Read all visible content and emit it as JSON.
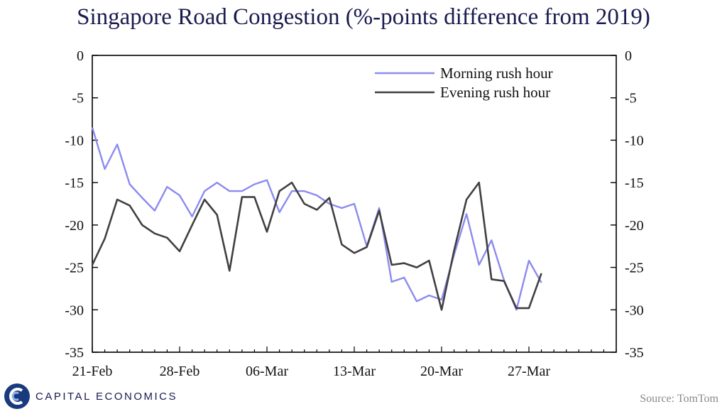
{
  "title": "Singapore Road Congestion (%-points difference from 2019)",
  "source": "Source: TomTom",
  "logo": {
    "text": "CAPITAL ECONOMICS",
    "icon": "ce-logo-icon"
  },
  "colors": {
    "morning": "#8b8bf0",
    "evening": "#404040",
    "title": "#1a1a4e"
  },
  "chart_data": {
    "type": "line",
    "title": "Singapore Road Congestion (%-points difference from 2019)",
    "ylim": [
      -35,
      0
    ],
    "yticks": [
      0,
      -5,
      -10,
      -15,
      -20,
      -25,
      -30,
      -35
    ],
    "ytick_labels": [
      "0",
      "-5",
      "-10",
      "-15",
      "-20",
      "-25",
      "-30",
      "-35"
    ],
    "xlim": [
      0,
      42
    ],
    "x_ticks": [
      0,
      7,
      14,
      21,
      28,
      35
    ],
    "x_tick_labels": [
      "21-Feb",
      "28-Feb",
      "06-Mar",
      "13-Mar",
      "20-Mar",
      "27-Mar"
    ],
    "legend_position": "top-right",
    "series": [
      {
        "name": "Morning rush hour",
        "x": [
          0,
          1,
          2,
          3,
          4,
          5,
          6,
          7,
          8,
          9,
          10,
          11,
          12,
          13,
          14,
          15,
          16,
          17,
          18,
          19,
          20,
          21,
          22,
          23,
          24,
          25,
          26,
          27,
          28,
          29,
          30,
          31,
          32,
          33,
          34,
          35,
          36
        ],
        "values": [
          -8.5,
          -13.4,
          -10.5,
          -15.2,
          -16.8,
          -18.3,
          -15.5,
          -16.5,
          -19,
          -16,
          -15,
          -16,
          -16,
          -15.2,
          -14.7,
          -18.5,
          -16,
          -16,
          -16.5,
          -17.5,
          -18,
          -17.5,
          -22.5,
          -18,
          -26.7,
          -26.2,
          -29,
          -28.3,
          -28.8,
          -23.5,
          -18.7,
          -24.7,
          -21.8,
          -26.5,
          -30,
          -24.2,
          -26.8
        ]
      },
      {
        "name": "Evening rush hour",
        "x": [
          0,
          1,
          2,
          3,
          4,
          5,
          6,
          7,
          8,
          9,
          10,
          11,
          12,
          13,
          14,
          15,
          16,
          17,
          18,
          19,
          20,
          21,
          22,
          23,
          24,
          25,
          26,
          27,
          28,
          29,
          30,
          31,
          32,
          33,
          34,
          35,
          36
        ],
        "values": [
          -24.7,
          -21.6,
          -17,
          -17.7,
          -20,
          -21,
          -21.5,
          -23.1,
          -20,
          -17,
          -18.8,
          -25.4,
          -16.7,
          -16.7,
          -20.8,
          -16,
          -15,
          -17.5,
          -18.2,
          -16.8,
          -22.3,
          -23.3,
          -22.6,
          -18.3,
          -24.7,
          -24.5,
          -25,
          -24.2,
          -30,
          -23,
          -17,
          -15,
          -26.4,
          -26.6,
          -29.8,
          -29.8,
          -25.7
        ]
      }
    ]
  }
}
